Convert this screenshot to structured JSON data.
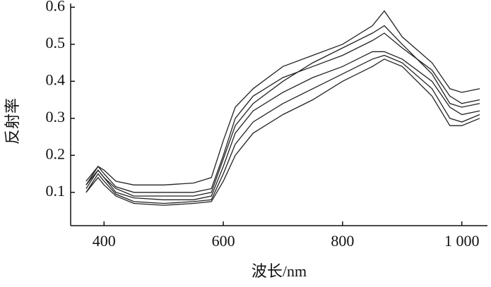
{
  "chart_data": {
    "type": "line",
    "xlabel": "波长/nm",
    "ylabel": "反射率",
    "x": [
      370,
      390,
      400,
      420,
      450,
      500,
      550,
      580,
      600,
      620,
      650,
      700,
      750,
      800,
      850,
      870,
      900,
      950,
      980,
      1000,
      1030
    ],
    "series": [
      {
        "color": "#222222",
        "values": [
          0.13,
          0.17,
          0.16,
          0.13,
          0.12,
          0.12,
          0.125,
          0.14,
          0.24,
          0.33,
          0.38,
          0.44,
          0.47,
          0.5,
          0.55,
          0.59,
          0.52,
          0.45,
          0.38,
          0.37,
          0.38
        ]
      },
      {
        "color": "#222222",
        "values": [
          0.12,
          0.17,
          0.15,
          0.115,
          0.1,
          0.1,
          0.1,
          0.11,
          0.2,
          0.3,
          0.36,
          0.41,
          0.44,
          0.47,
          0.51,
          0.53,
          0.49,
          0.43,
          0.36,
          0.34,
          0.35
        ]
      },
      {
        "color": "#222222",
        "values": [
          0.11,
          0.16,
          0.14,
          0.1,
          0.085,
          0.08,
          0.08,
          0.09,
          0.17,
          0.26,
          0.32,
          0.37,
          0.41,
          0.44,
          0.48,
          0.48,
          0.46,
          0.4,
          0.33,
          0.31,
          0.32
        ]
      },
      {
        "color": "#222222",
        "values": [
          0.1,
          0.15,
          0.13,
          0.095,
          0.075,
          0.07,
          0.075,
          0.08,
          0.15,
          0.23,
          0.29,
          0.34,
          0.38,
          0.42,
          0.46,
          0.47,
          0.45,
          0.38,
          0.3,
          0.29,
          0.31
        ]
      },
      {
        "color": "#222222",
        "values": [
          0.1,
          0.14,
          0.12,
          0.09,
          0.07,
          0.065,
          0.07,
          0.075,
          0.13,
          0.2,
          0.26,
          0.31,
          0.35,
          0.4,
          0.44,
          0.46,
          0.44,
          0.36,
          0.28,
          0.28,
          0.3
        ]
      },
      {
        "color": "#222222",
        "values": [
          0.12,
          0.16,
          0.14,
          0.11,
          0.09,
          0.09,
          0.09,
          0.1,
          0.19,
          0.28,
          0.34,
          0.4,
          0.45,
          0.49,
          0.53,
          0.55,
          0.5,
          0.42,
          0.34,
          0.33,
          0.34
        ]
      }
    ],
    "xlim": [
      344,
      1043
    ],
    "ylim": [
      0.01,
      0.61
    ],
    "xticks": [
      400,
      600,
      800,
      {
        "value": 1000,
        "label": "1 000"
      }
    ],
    "yticks": [
      0.1,
      0.2,
      0.3,
      0.4,
      0.5,
      0.6
    ]
  }
}
